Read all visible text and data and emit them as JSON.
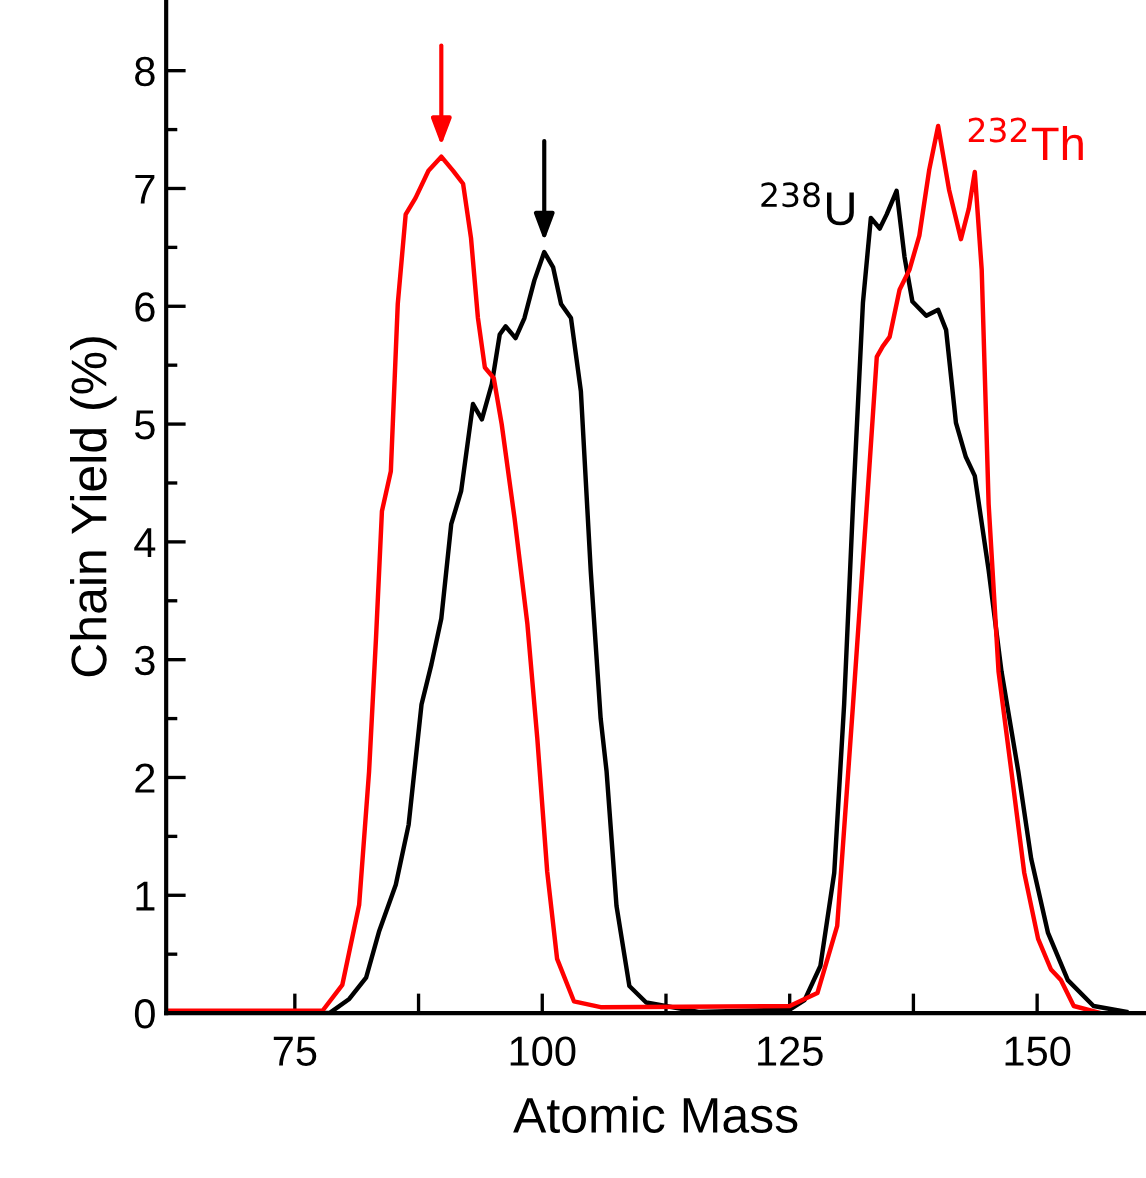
{
  "chart_data": {
    "type": "line",
    "xlabel": "Atomic Mass",
    "ylabel": "Chain Yield (%)",
    "xlim": [
      62,
      161
    ],
    "ylim": [
      0,
      8.6
    ],
    "xticks": [
      75,
      {
        "value": 87.5,
        "label": null
      },
      100,
      {
        "value": 112.5,
        "label": null
      },
      125,
      {
        "value": 137.5,
        "label": null
      },
      150
    ],
    "yticks": [
      0,
      {
        "value": 0.5,
        "label": null
      },
      1,
      {
        "value": 1.5,
        "label": null
      },
      2,
      {
        "value": 2.5,
        "label": null
      },
      3,
      {
        "value": 3.5,
        "label": null
      },
      4,
      {
        "value": 4.5,
        "label": null
      },
      5,
      {
        "value": 5.5,
        "label": null
      },
      6,
      {
        "value": 6.5,
        "label": null
      },
      7,
      {
        "value": 7.5,
        "label": null
      },
      8
    ],
    "grid": false,
    "legend": false,
    "marker": "none",
    "line_style": "solid",
    "series": [
      {
        "name": "$^{238}$U",
        "color": "#000000",
        "x": [
          62,
          78.5,
          80.5,
          82.2,
          83.5,
          85.2,
          86.5,
          87.8,
          88.8,
          89.8,
          90.8,
          91.8,
          93.0,
          93.9,
          94.9,
          95.7,
          96.3,
          97.3,
          98.2,
          99.2,
          100.2,
          101.1,
          101.9,
          102.9,
          103.9,
          104.9,
          105.9,
          106.5,
          107.5,
          108.8,
          110.5,
          115.8,
          125,
          126.5,
          128.1,
          129.5,
          130.5,
          131.4,
          132.4,
          133.2,
          134.1,
          134.8,
          135.8,
          136.6,
          137.4,
          138.8,
          140.0,
          140.8,
          141.8,
          142.8,
          143.7,
          145.1,
          146.4,
          148.1,
          149.4,
          151.1,
          153.1,
          155.7,
          159
        ],
        "values": [
          0,
          0,
          0.12,
          0.3,
          0.69,
          1.09,
          1.6,
          2.62,
          2.96,
          3.35,
          4.15,
          4.43,
          5.17,
          5.04,
          5.34,
          5.76,
          5.83,
          5.73,
          5.9,
          6.22,
          6.46,
          6.33,
          6.02,
          5.9,
          5.28,
          3.75,
          2.5,
          2.05,
          0.91,
          0.23,
          0.09,
          0.01,
          0.03,
          0.11,
          0.4,
          1.19,
          2.62,
          4.32,
          6.03,
          6.75,
          6.66,
          6.78,
          6.98,
          6.42,
          6.04,
          5.92,
          5.97,
          5.8,
          5.01,
          4.72,
          4.56,
          3.76,
          2.9,
          2.05,
          1.31,
          0.68,
          0.28,
          0.06,
          0.01
        ]
      },
      {
        "name": "$^{232}$Th",
        "color": "#ff0000",
        "x": [
          62,
          77.8,
          79.8,
          81.5,
          82.5,
          83.2,
          83.8,
          84.7,
          85.4,
          86.2,
          87.2,
          88.5,
          89.8,
          91.0,
          92.0,
          92.8,
          93.5,
          94.2,
          95.1,
          95.9,
          97.2,
          98.5,
          99.5,
          100.5,
          101.5,
          103.2,
          105.9,
          125,
          127.8,
          129.8,
          131.4,
          132.8,
          133.8,
          134.4,
          135.1,
          136.1,
          137.1,
          138.1,
          139.1,
          140.0,
          141.1,
          142.3,
          143.1,
          143.7,
          144.4,
          145.1,
          146.1,
          147.4,
          148.7,
          150.1,
          151.4,
          152.4,
          153.7,
          156.4
        ],
        "values": [
          0.02,
          0.02,
          0.24,
          0.92,
          2.05,
          3.18,
          4.26,
          4.6,
          6.02,
          6.78,
          6.92,
          7.15,
          7.27,
          7.15,
          7.04,
          6.58,
          5.9,
          5.48,
          5.39,
          5.0,
          4.2,
          3.3,
          2.33,
          1.2,
          0.46,
          0.1,
          0.05,
          0.06,
          0.17,
          0.74,
          2.62,
          4.32,
          5.57,
          5.66,
          5.74,
          6.14,
          6.31,
          6.6,
          7.16,
          7.53,
          6.99,
          6.57,
          6.83,
          7.14,
          6.31,
          4.32,
          2.9,
          2.05,
          1.19,
          0.63,
          0.37,
          0.28,
          0.06,
          0
        ]
      }
    ]
  }
}
